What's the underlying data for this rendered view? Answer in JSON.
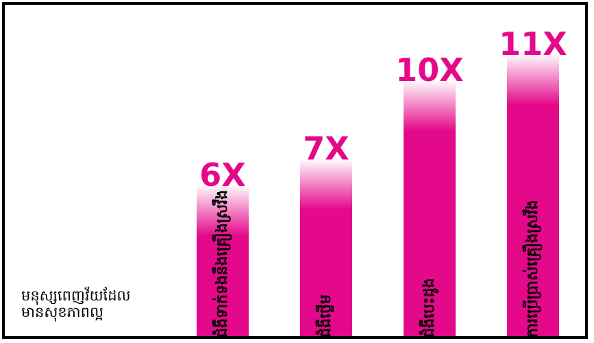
{
  "colors": {
    "bar": "#e4088a",
    "value_text": "#e4088a",
    "label_text": "#000000",
    "frame": "#000000",
    "background": "#ffffff"
  },
  "baseline_label": {
    "line1": "មនុស្សពេញវ័យដែល",
    "line2": "មានសុខភាពល្អ"
  },
  "chart_data": {
    "type": "bar",
    "title": "",
    "xlabel": "",
    "ylabel": "",
    "categories": [
      "ជំងឺទាក់ទងនឹងគ្រឿងស្រវឹង",
      "ជំងឺថ្លើម",
      "ជំងឺបេះដូង",
      "ការប្រើប្រាស់គ្រឿងស្រវឹង"
    ],
    "series": [
      {
        "values": [
          6,
          7,
          10,
          11
        ],
        "value_labels": [
          "6X",
          "7X",
          "10X",
          "11X"
        ]
      }
    ],
    "ylim": [
      0,
      11
    ],
    "grid": false,
    "legend": "none"
  }
}
